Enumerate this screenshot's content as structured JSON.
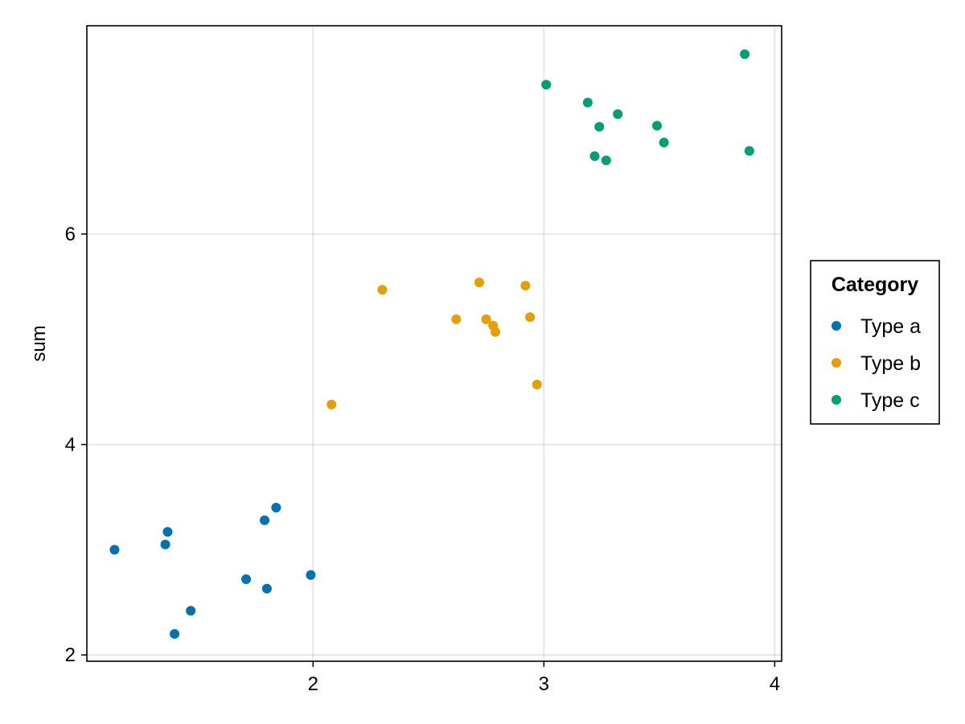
{
  "chart_data": {
    "type": "scatter",
    "title": "",
    "xlabel": "",
    "ylabel": "sum",
    "xlim": [
      1.02,
      4.03
    ],
    "ylim": [
      1.94,
      7.98
    ],
    "xticks": [
      2,
      3,
      4
    ],
    "yticks": [
      2,
      4,
      6
    ],
    "grid": true,
    "legend": {
      "title": "Category",
      "position": "right"
    },
    "series": [
      {
        "name": "Type a",
        "color": "#0072b2",
        "points": [
          [
            1.14,
            3.0
          ],
          [
            1.37,
            3.17
          ],
          [
            1.36,
            3.05
          ],
          [
            1.79,
            3.28
          ],
          [
            1.84,
            3.4
          ],
          [
            1.71,
            2.72
          ],
          [
            1.8,
            2.63
          ],
          [
            1.99,
            2.76
          ],
          [
            1.47,
            2.42
          ],
          [
            1.4,
            2.2
          ]
        ]
      },
      {
        "name": "Type b",
        "color": "#e69f00",
        "points": [
          [
            2.08,
            4.38
          ],
          [
            2.3,
            5.47
          ],
          [
            2.62,
            5.19
          ],
          [
            2.72,
            5.54
          ],
          [
            2.75,
            5.19
          ],
          [
            2.78,
            5.13
          ],
          [
            2.79,
            5.07
          ],
          [
            2.92,
            5.51
          ],
          [
            2.94,
            5.21
          ],
          [
            2.97,
            4.57
          ]
        ]
      },
      {
        "name": "Type c",
        "color": "#009e73",
        "points": [
          [
            3.01,
            7.42
          ],
          [
            3.19,
            7.25
          ],
          [
            3.24,
            7.02
          ],
          [
            3.32,
            7.14
          ],
          [
            3.22,
            6.74
          ],
          [
            3.27,
            6.7
          ],
          [
            3.49,
            7.03
          ],
          [
            3.52,
            6.87
          ],
          [
            3.87,
            7.71
          ],
          [
            3.89,
            6.79
          ]
        ]
      }
    ]
  }
}
